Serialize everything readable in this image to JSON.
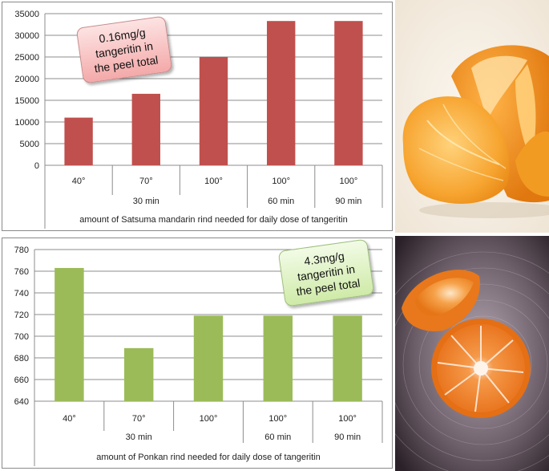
{
  "chart_data": [
    {
      "type": "bar",
      "categories": [
        "40°",
        "70°",
        "100°",
        "100°",
        "100°"
      ],
      "groups": [
        {
          "label": "30 min",
          "span": 3
        },
        {
          "label": "60 min",
          "span": 1
        },
        {
          "label": "90 min",
          "span": 1
        }
      ],
      "values": [
        11000,
        16500,
        25000,
        33300,
        33300
      ],
      "ylim": [
        0,
        35000
      ],
      "yticks": [
        "0",
        "5000",
        "10000",
        "15000",
        "20000",
        "25000",
        "30000",
        "35000"
      ],
      "xlabel": "amount of Satsuma  mandarin  rind needed for daily dose of tangeritin",
      "callout": [
        "0.16mg/g",
        "tangeritin in",
        "the peel total"
      ],
      "bar_color": "#c0504d",
      "grid": true
    },
    {
      "type": "bar",
      "categories": [
        "40°",
        "70°",
        "100°",
        "100°",
        "100°"
      ],
      "groups": [
        {
          "label": "30 min",
          "span": 3
        },
        {
          "label": "60 min",
          "span": 1
        },
        {
          "label": "90 min",
          "span": 1
        }
      ],
      "values": [
        763,
        689,
        719,
        719,
        719
      ],
      "ylim": [
        640,
        780
      ],
      "yticks": [
        "640",
        "660",
        "680",
        "700",
        "720",
        "740",
        "760",
        "780"
      ],
      "xlabel": "amount of Ponkan rind needed for daily dose of tangeritin",
      "callout": [
        "4.3mg/g",
        "tangeritin in",
        "the peel total"
      ],
      "bar_color": "#9bbb59",
      "grid": true
    }
  ],
  "photos": [
    {
      "icon": "peeled-mandarin-photo"
    },
    {
      "icon": "halved-ponkan-photo"
    }
  ]
}
